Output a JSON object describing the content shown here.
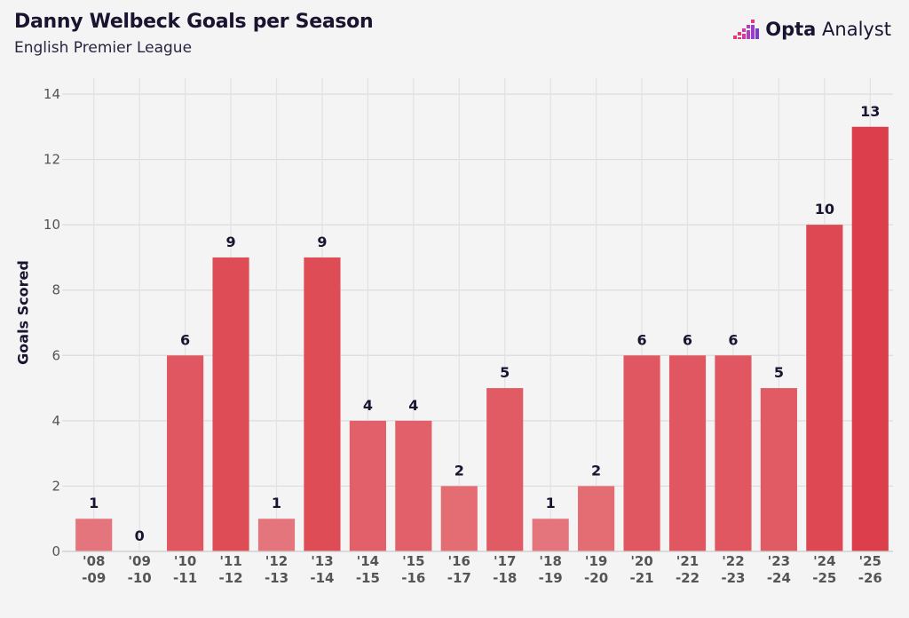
{
  "header": {
    "title": "Danny Welbeck Goals per Season",
    "subtitle": "English Premier League"
  },
  "brand": {
    "name_bold": "Opta",
    "name_rest": " Analyst",
    "icon": "opta-logo-icon",
    "colors": [
      "#e23a7b",
      "#b23cc4",
      "#7a3ad0"
    ]
  },
  "chart_data": {
    "type": "bar",
    "ylabel": "Goals Scored",
    "xlabel": "",
    "ylim": [
      0,
      14
    ],
    "yticks": [
      0,
      2,
      4,
      6,
      8,
      10,
      12,
      14
    ],
    "grid": true,
    "categories": [
      "'08 -09",
      "'09 -10",
      "'10 -11",
      "'11 -12",
      "'12 -13",
      "'13 -14",
      "'14 -15",
      "'15 -16",
      "'16 -17",
      "'17 -18",
      "'18 -19",
      "'19 -20",
      "'20 -21",
      "'21 -22",
      "'22 -23",
      "'23 -24",
      "'24 -25",
      "'25 -26"
    ],
    "values": [
      1,
      0,
      6,
      9,
      1,
      9,
      4,
      4,
      2,
      5,
      1,
      2,
      6,
      6,
      6,
      5,
      10,
      13
    ],
    "colors": {
      "low": "#e98a8f",
      "high": "#dc3f4b"
    }
  }
}
